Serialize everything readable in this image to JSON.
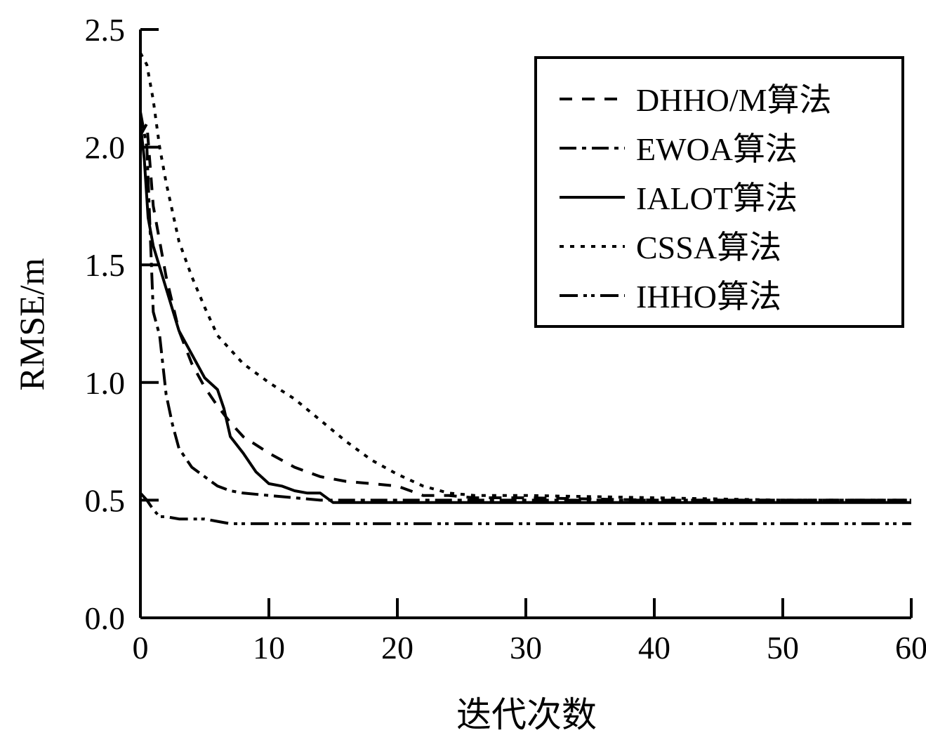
{
  "chart_data": {
    "type": "line",
    "title": "",
    "xlabel": "迭代次数",
    "ylabel": "RMSE/m",
    "xlim": [
      0,
      60
    ],
    "ylim": [
      0,
      2.5
    ],
    "xticks": [
      0,
      10,
      20,
      30,
      40,
      50,
      60
    ],
    "xtick_labels": [
      "0",
      "10",
      "20",
      "30",
      "40",
      "50",
      "60"
    ],
    "yticks": [
      0,
      0.5,
      1.0,
      1.5,
      2.0,
      2.5
    ],
    "ytick_labels": [
      "0.0",
      "0.5",
      "1.0",
      "1.5",
      "2.0",
      "2.5"
    ],
    "grid": false,
    "legend_position": "top-right",
    "series": [
      {
        "name": "DHHO/M算法",
        "style": "dashed",
        "color": "#000000",
        "x": [
          0,
          0.5,
          1,
          2,
          3,
          4,
          5,
          6,
          7,
          8,
          10,
          12,
          14,
          16,
          18,
          20,
          22,
          24,
          26,
          30,
          40,
          50,
          60
        ],
        "y": [
          2.05,
          2.1,
          1.75,
          1.45,
          1.22,
          1.08,
          0.98,
          0.9,
          0.83,
          0.77,
          0.7,
          0.64,
          0.6,
          0.58,
          0.57,
          0.56,
          0.52,
          0.52,
          0.51,
          0.51,
          0.5,
          0.5,
          0.5
        ]
      },
      {
        "name": "EWOA算法",
        "style": "dashdot",
        "color": "#000000",
        "x": [
          0,
          0.5,
          1,
          1.5,
          2,
          2.5,
          3,
          4,
          5,
          6,
          7,
          8,
          10,
          12,
          14,
          20,
          30,
          40,
          50,
          60
        ],
        "y": [
          2.15,
          2.0,
          1.3,
          1.2,
          0.95,
          0.82,
          0.72,
          0.64,
          0.6,
          0.56,
          0.54,
          0.53,
          0.52,
          0.51,
          0.5,
          0.5,
          0.5,
          0.5,
          0.5,
          0.5
        ]
      },
      {
        "name": "IALOT算法",
        "style": "solid",
        "color": "#000000",
        "x": [
          0,
          0.3,
          0.6,
          1,
          2,
          3,
          4,
          5,
          6,
          6.5,
          7,
          8,
          9,
          10,
          11,
          12,
          13,
          14,
          15,
          20,
          30,
          40,
          50,
          60
        ],
        "y": [
          2.1,
          1.95,
          1.7,
          1.58,
          1.4,
          1.22,
          1.12,
          1.02,
          0.97,
          0.89,
          0.77,
          0.7,
          0.62,
          0.57,
          0.56,
          0.54,
          0.53,
          0.53,
          0.49,
          0.49,
          0.49,
          0.49,
          0.49,
          0.49
        ]
      },
      {
        "name": "CSSA算法",
        "style": "dotted",
        "color": "#000000",
        "x": [
          0,
          0.5,
          1,
          1.5,
          2,
          3,
          4,
          5,
          6,
          8,
          10,
          12,
          14,
          16,
          18,
          20,
          22,
          24,
          26,
          30,
          40,
          50,
          60
        ],
        "y": [
          2.4,
          2.35,
          2.2,
          2.0,
          1.85,
          1.6,
          1.45,
          1.32,
          1.2,
          1.08,
          1.0,
          0.93,
          0.84,
          0.75,
          0.67,
          0.61,
          0.56,
          0.53,
          0.52,
          0.52,
          0.51,
          0.5,
          0.5
        ]
      },
      {
        "name": "IHHO算法",
        "style": "dashdotdot",
        "color": "#000000",
        "x": [
          0,
          0.5,
          1,
          1.5,
          2,
          3,
          4,
          5,
          6,
          7,
          10,
          20,
          30,
          40,
          50,
          60
        ],
        "y": [
          0.53,
          0.5,
          0.46,
          0.43,
          0.43,
          0.42,
          0.42,
          0.42,
          0.41,
          0.4,
          0.4,
          0.4,
          0.4,
          0.4,
          0.4,
          0.4
        ]
      }
    ]
  }
}
